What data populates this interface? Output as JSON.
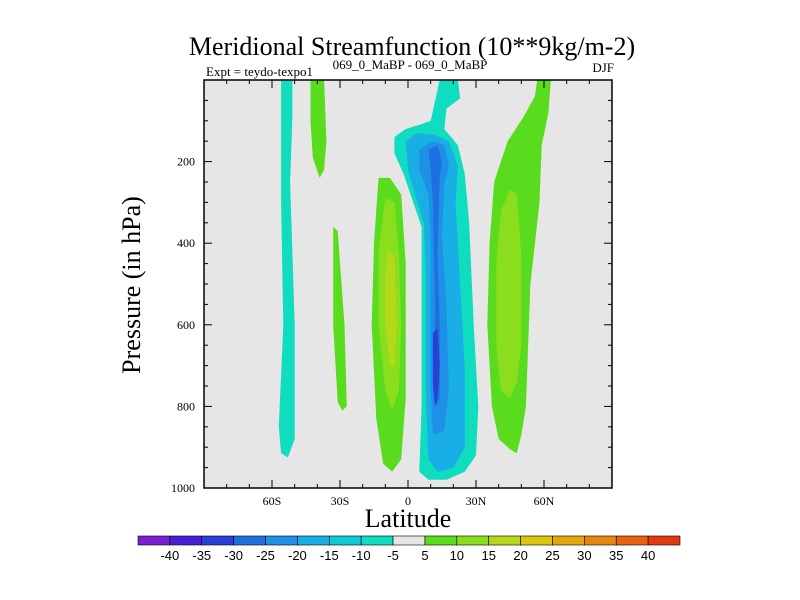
{
  "chart_data": {
    "type": "contour",
    "title": "Meridional Streamfunction (10**9kg/m-2)",
    "subtitle_left": "Expt = teydo-texpo1",
    "subtitle_center": "069_0_MaBP - 069_0_MaBP",
    "subtitle_right": "DJF",
    "xlabel": "Latitude",
    "ylabel": "Pressure (in hPa)",
    "xlim": [
      -90,
      90
    ],
    "ylim": [
      1000,
      0
    ],
    "x_ticks": [
      {
        "value": -60,
        "label": "60S"
      },
      {
        "value": -30,
        "label": "30S"
      },
      {
        "value": 0,
        "label": "0"
      },
      {
        "value": 30,
        "label": "30N"
      },
      {
        "value": 60,
        "label": "60N"
      }
    ],
    "y_ticks": [
      {
        "value": 200,
        "label": "200"
      },
      {
        "value": 400,
        "label": "400"
      },
      {
        "value": 600,
        "label": "600"
      },
      {
        "value": 800,
        "label": "800"
      },
      {
        "value": 1000,
        "label": "1000"
      }
    ],
    "background_color": "#e6e6e6",
    "colorbar": {
      "labels": [
        "-40",
        "-35",
        "-30",
        "-25",
        "-20",
        "-15",
        "-10",
        "-5",
        "5",
        "10",
        "15",
        "20",
        "25",
        "30",
        "35",
        "40"
      ],
      "colors": [
        "#7a1fd6",
        "#4a1fd6",
        "#2a3fd6",
        "#1e6fe0",
        "#1e90e6",
        "#1aaee6",
        "#10c8d6",
        "#10dcc0",
        "#e6e6e6",
        "#5adc1e",
        "#8ade1e",
        "#b6d81a",
        "#d8c610",
        "#e0a80c",
        "#e68810",
        "#e86010",
        "#e03a10"
      ]
    },
    "regions": [
      {
        "name": "sh-polar-cell-neg",
        "level": "-5",
        "color": "#10dcc0",
        "points": [
          [
            -56,
            0
          ],
          [
            -51,
            0
          ],
          [
            -51,
            90
          ],
          [
            -52,
            250
          ],
          [
            -50,
            600
          ],
          [
            -50,
            880
          ],
          [
            -53,
            925
          ],
          [
            -56,
            915
          ],
          [
            -57,
            850
          ],
          [
            -55,
            600
          ],
          [
            -56,
            300
          ],
          [
            -56,
            100
          ]
        ]
      },
      {
        "name": "sh-upper-pos",
        "level": "5",
        "color": "#5adc1e",
        "points": [
          [
            -43,
            0
          ],
          [
            -37,
            0
          ],
          [
            -36,
            150
          ],
          [
            -37,
            220
          ],
          [
            -39,
            240
          ],
          [
            -42,
            190
          ],
          [
            -43,
            100
          ]
        ]
      },
      {
        "name": "sh-midlat-pos",
        "level": "5",
        "color": "#5adc1e",
        "points": [
          [
            -33,
            360
          ],
          [
            -31,
            370
          ],
          [
            -28,
            600
          ],
          [
            -27,
            800
          ],
          [
            -29,
            810
          ],
          [
            -31,
            790
          ],
          [
            -33,
            600
          ]
        ]
      },
      {
        "name": "sh-hadley-pos-5",
        "level": "5",
        "color": "#5adc1e",
        "points": [
          [
            -13,
            240
          ],
          [
            -8,
            240
          ],
          [
            -3,
            280
          ],
          [
            -1,
            450
          ],
          [
            -1,
            600
          ],
          [
            -1,
            780
          ],
          [
            -3,
            930
          ],
          [
            -7,
            960
          ],
          [
            -11,
            940
          ],
          [
            -14,
            830
          ],
          [
            -16,
            600
          ],
          [
            -15,
            400
          ]
        ]
      },
      {
        "name": "sh-hadley-pos-10",
        "level": "10",
        "color": "#8ade1e",
        "points": [
          [
            -10,
            290
          ],
          [
            -6,
            300
          ],
          [
            -4,
            420
          ],
          [
            -3,
            600
          ],
          [
            -4,
            760
          ],
          [
            -7,
            810
          ],
          [
            -10,
            760
          ],
          [
            -13,
            600
          ],
          [
            -13,
            420
          ]
        ]
      },
      {
        "name": "sh-hadley-pos-15",
        "level": "15",
        "color": "#b6d81a",
        "points": [
          [
            -9,
            420
          ],
          [
            -6,
            430
          ],
          [
            -5,
            600
          ],
          [
            -6,
            700
          ],
          [
            -8,
            700
          ],
          [
            -10,
            600
          ],
          [
            -10,
            470
          ]
        ]
      },
      {
        "name": "hadley-neg-5",
        "level": "-5",
        "color": "#10dcc0",
        "points": [
          [
            -6,
            140
          ],
          [
            -1,
            120
          ],
          [
            5,
            110
          ],
          [
            10,
            100
          ],
          [
            14,
            0
          ],
          [
            22,
            0
          ],
          [
            23,
            45
          ],
          [
            17,
            70
          ],
          [
            16,
            120
          ],
          [
            22,
            160
          ],
          [
            25,
            230
          ],
          [
            27,
            350
          ],
          [
            29,
            600
          ],
          [
            31,
            800
          ],
          [
            30,
            920
          ],
          [
            25,
            960
          ],
          [
            17,
            980
          ],
          [
            9,
            980
          ],
          [
            5,
            960
          ],
          [
            6,
            800
          ],
          [
            6,
            600
          ],
          [
            6,
            360
          ],
          [
            -2,
            230
          ],
          [
            -6,
            180
          ]
        ]
      },
      {
        "name": "hadley-neg-10",
        "level": "-10",
        "color": "#1aaee6",
        "points": [
          [
            -1,
            150
          ],
          [
            4,
            130
          ],
          [
            12,
            135
          ],
          [
            18,
            150
          ],
          [
            22,
            210
          ],
          [
            21,
            300
          ],
          [
            23,
            500
          ],
          [
            25,
            700
          ],
          [
            25,
            900
          ],
          [
            20,
            950
          ],
          [
            13,
            960
          ],
          [
            9,
            930
          ],
          [
            8,
            800
          ],
          [
            8,
            500
          ],
          [
            7,
            350
          ],
          [
            3,
            280
          ],
          [
            0,
            220
          ]
        ]
      },
      {
        "name": "hadley-neg-15",
        "level": "-15",
        "color": "#1e90e6",
        "points": [
          [
            5,
            170
          ],
          [
            11,
            150
          ],
          [
            16,
            160
          ],
          [
            18,
            210
          ],
          [
            16,
            260
          ],
          [
            15,
            380
          ],
          [
            17,
            550
          ],
          [
            18,
            760
          ],
          [
            16,
            860
          ],
          [
            11,
            870
          ],
          [
            10,
            760
          ],
          [
            10,
            550
          ],
          [
            10,
            400
          ],
          [
            9,
            280
          ],
          [
            5,
            220
          ]
        ]
      },
      {
        "name": "hadley-neg-20",
        "level": "-20",
        "color": "#1e6fe0",
        "points": [
          [
            9,
            170
          ],
          [
            13,
            160
          ],
          [
            15,
            200
          ],
          [
            14,
            240
          ],
          [
            13,
            420
          ],
          [
            14,
            600
          ],
          [
            14,
            780
          ],
          [
            12,
            800
          ],
          [
            11,
            760
          ],
          [
            12,
            560
          ],
          [
            11,
            300
          ],
          [
            10,
            220
          ]
        ]
      },
      {
        "name": "hadley-neg-25",
        "level": "-25",
        "color": "#2a3fd6",
        "points": [
          [
            11,
            620
          ],
          [
            13,
            610
          ],
          [
            14,
            700
          ],
          [
            13,
            780
          ],
          [
            12,
            800
          ],
          [
            11,
            740
          ]
        ]
      },
      {
        "name": "nh-ferrel-pos-5",
        "level": "5",
        "color": "#5adc1e",
        "points": [
          [
            57,
            0
          ],
          [
            63,
            0
          ],
          [
            62,
            80
          ],
          [
            59,
            160
          ],
          [
            58,
            300
          ],
          [
            54,
            500
          ],
          [
            52,
            800
          ],
          [
            50,
            870
          ],
          [
            48,
            915
          ],
          [
            45,
            905
          ],
          [
            40,
            880
          ],
          [
            37,
            800
          ],
          [
            35,
            600
          ],
          [
            36,
            400
          ],
          [
            38,
            250
          ],
          [
            44,
            150
          ],
          [
            51,
            90
          ],
          [
            56,
            40
          ]
        ]
      },
      {
        "name": "nh-ferrel-pos-10",
        "level": "10",
        "color": "#8ade1e",
        "points": [
          [
            45,
            270
          ],
          [
            48,
            280
          ],
          [
            50,
            430
          ],
          [
            50,
            650
          ],
          [
            48,
            740
          ],
          [
            45,
            780
          ],
          [
            41,
            760
          ],
          [
            39,
            650
          ],
          [
            39,
            450
          ],
          [
            41,
            320
          ]
        ]
      }
    ]
  }
}
